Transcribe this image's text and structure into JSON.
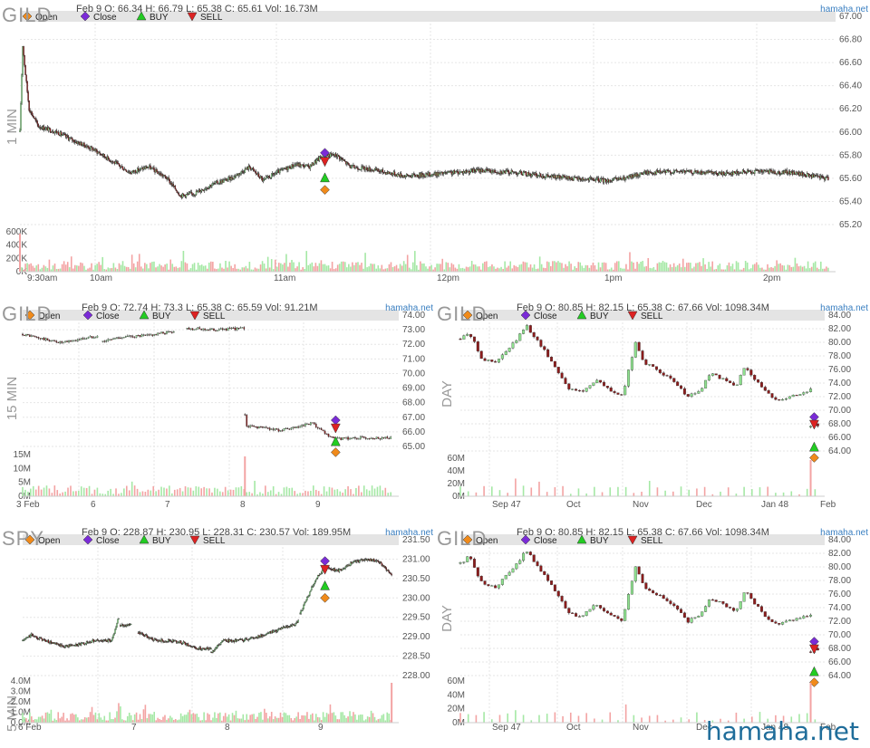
{
  "watermark": "hamaha.net",
  "colors": {
    "up": "#8ee08e",
    "down": "#ee7777",
    "upBody": "#8ee08e",
    "downBody": "#8b1c1c",
    "open": "#f08a1a",
    "close": "#7a2bd6",
    "buy": "#22cc22",
    "sell": "#dd2222",
    "volUp": "#a5e8a5",
    "volDown": "#f3a3a3"
  },
  "charts": [
    {
      "id": "gild-1min",
      "symbol": "GILD",
      "timeframe": "1 MIN",
      "brand": "hamaha.net",
      "header": {
        "date": "Feb 9",
        "O": "66.34",
        "H": "66.79",
        "L": "65.38",
        "C": "65.61",
        "vol": "16.73M"
      },
      "legend": [
        "Open",
        "Close",
        "BUY",
        "SELL"
      ],
      "price_ticks": [
        "67.00",
        "66.80",
        "66.60",
        "66.40",
        "66.20",
        "66.00",
        "65.80",
        "65.60",
        "65.40",
        "65.20"
      ],
      "volume_ticks": [
        "600K",
        "400K",
        "200K",
        "0K"
      ],
      "x_ticks": [
        "9:30am",
        "10am",
        "11am",
        "12pm",
        "1pm",
        "2pm"
      ]
    },
    {
      "id": "gild-15min",
      "symbol": "GILD",
      "timeframe": "15 MIN",
      "brand": "hamaha.net",
      "header": {
        "date": "Feb 9",
        "O": "72.74",
        "H": "73.3",
        "L": "65.38",
        "C": "65.59",
        "vol": "91.21M"
      },
      "legend": [
        "Open",
        "Close",
        "BUY",
        "SELL"
      ],
      "price_ticks": [
        "74.00",
        "73.00",
        "72.00",
        "71.00",
        "70.00",
        "69.00",
        "68.00",
        "67.00",
        "66.00",
        "65.00"
      ],
      "volume_ticks": [
        "15M",
        "10M",
        "5M",
        "0M"
      ],
      "x_ticks": [
        "3 Feb",
        "6",
        "7",
        "8",
        "9"
      ]
    },
    {
      "id": "gild-day-a",
      "symbol": "GILD",
      "timeframe": "DAY",
      "brand": "hamaha.net",
      "header": {
        "date": "Feb 9",
        "O": "80.85",
        "H": "82.15",
        "L": "65.38",
        "C": "67.66",
        "vol": "1098.34M"
      },
      "legend": [
        "Open",
        "Close",
        "BUY",
        "SELL"
      ],
      "price_ticks": [
        "84.00",
        "82.00",
        "80.00",
        "78.00",
        "76.00",
        "74.00",
        "72.00",
        "70.00",
        "68.00",
        "66.00",
        "64.00"
      ],
      "volume_ticks": [
        "60M",
        "40M",
        "20M",
        "0M"
      ],
      "x_ticks": [
        "Sep 47",
        "Oct",
        "Nov",
        "Dec",
        "Jan 48",
        "Feb"
      ]
    },
    {
      "id": "spy-5min",
      "symbol": "SPY",
      "timeframe": "5 MIN",
      "brand": "hamaha.net",
      "header": {
        "date": "Feb 9",
        "O": "228.87",
        "H": "230.95",
        "L": "228.31",
        "C": "230.57",
        "vol": "189.95M"
      },
      "legend": [
        "Open",
        "Close",
        "BUY",
        "SELL"
      ],
      "price_ticks": [
        "231.50",
        "231.00",
        "230.50",
        "230.00",
        "229.50",
        "229.00",
        "228.50",
        "228.00"
      ],
      "volume_ticks": [
        "4.0M",
        "3.0M",
        "2.0M",
        "1.0M",
        "0.0M"
      ],
      "x_ticks": [
        "6 Feb",
        "7",
        "8",
        "9"
      ]
    },
    {
      "id": "gild-day-b",
      "symbol": "GILD",
      "timeframe": "DAY",
      "brand": "hamaha.net",
      "header": {
        "date": "Feb 9",
        "O": "80.85",
        "H": "82.15",
        "L": "65.38",
        "C": "67.66",
        "vol": "1098.34M"
      },
      "legend": [
        "Open",
        "Close",
        "BUY",
        "SELL"
      ],
      "price_ticks": [
        "84.00",
        "82.00",
        "80.00",
        "78.00",
        "76.00",
        "74.00",
        "72.00",
        "70.00",
        "68.00",
        "66.00",
        "64.00"
      ],
      "volume_ticks": [
        "60M",
        "40M",
        "20M",
        "0M"
      ],
      "x_ticks": [
        "Sep 47",
        "Oct",
        "Nov",
        "Dec",
        "Jan 48",
        "Feb"
      ]
    }
  ],
  "chart_data": [
    {
      "type": "candlestick",
      "title": "GILD 1 MIN",
      "ylim": [
        65.2,
        67.0
      ],
      "price_path": [
        {
          "x": "9:30am",
          "y": 66.0
        },
        {
          "x": "9:32",
          "y": 66.75
        },
        {
          "x": "9:36",
          "y": 66.3
        },
        {
          "x": "9:45",
          "y": 66.05
        },
        {
          "x": "10am",
          "y": 65.95
        },
        {
          "x": "10:10",
          "y": 65.7
        },
        {
          "x": "10:20",
          "y": 65.75
        },
        {
          "x": "10:35",
          "y": 65.45
        },
        {
          "x": "10:50",
          "y": 65.55
        },
        {
          "x": "11am",
          "y": 65.65
        },
        {
          "x": "11:10",
          "y": 65.55
        },
        {
          "x": "11:20",
          "y": 65.7
        },
        {
          "x": "11:30",
          "y": 65.8
        },
        {
          "x": "11:45",
          "y": 65.65
        },
        {
          "x": "12pm",
          "y": 65.62
        },
        {
          "x": "12:30",
          "y": 65.65
        },
        {
          "x": "1pm",
          "y": 65.58
        },
        {
          "x": "1:15",
          "y": 65.65
        },
        {
          "x": "1:45",
          "y": 65.63
        },
        {
          "x": "2pm",
          "y": 65.66
        },
        {
          "x": "2:30",
          "y": 65.6
        }
      ],
      "markers": {
        "Open": 65.5,
        "Close": 65.82,
        "BUY": 65.6,
        "SELL": 65.75
      },
      "volume_max": "600K"
    },
    {
      "type": "candlestick",
      "title": "GILD 15 MIN",
      "ylim": [
        65.0,
        74.0
      ],
      "price_path": [
        {
          "x": "3 Feb",
          "y": 72.7
        },
        {
          "x": "5 Feb",
          "y": 72.4
        },
        {
          "x": "6",
          "y": 72.1
        },
        {
          "x": "6.5",
          "y": 72.4
        },
        {
          "x": "7",
          "y": 72.8
        },
        {
          "x": "7.5",
          "y": 73.1
        },
        {
          "x": "8 open",
          "y": 67.0
        },
        {
          "x": "8",
          "y": 66.5
        },
        {
          "x": "8.5",
          "y": 66.2
        },
        {
          "x": "9",
          "y": 66.3
        },
        {
          "x": "9.3",
          "y": 65.7
        },
        {
          "x": "9.8",
          "y": 65.6
        }
      ],
      "markers": {
        "Open": 64.6,
        "Close": 66.8,
        "BUY": 65.3,
        "SELL": 66.3
      },
      "volume_max": "15M"
    },
    {
      "type": "candlestick",
      "title": "GILD DAY",
      "ylim": [
        64.0,
        84.0
      ],
      "price_path": [
        {
          "x": "Sep 47",
          "y": 81.0
        },
        {
          "x": "mid Sep",
          "y": 78.0
        },
        {
          "x": "late Sep",
          "y": 82.0
        },
        {
          "x": "Oct",
          "y": 80.0
        },
        {
          "x": "mid Oct",
          "y": 73.0
        },
        {
          "x": "Nov",
          "y": 72.0
        },
        {
          "x": "Nov",
          "y": 80.0
        },
        {
          "x": "mid Nov",
          "y": 76.0
        },
        {
          "x": "Dec",
          "y": 72.0
        },
        {
          "x": "mid Dec",
          "y": 75.0
        },
        {
          "x": "late Dec",
          "y": 72.0
        },
        {
          "x": "Jan 48",
          "y": 77.0
        },
        {
          "x": "mid Jan",
          "y": 72.0
        },
        {
          "x": "late Jan",
          "y": 72.5
        },
        {
          "x": "Feb",
          "y": 73.0
        },
        {
          "x": "Feb 9",
          "y": 67.66
        }
      ],
      "markers": {
        "Open": 63.0,
        "Close": 69.0,
        "BUY": 64.5,
        "SELL": 68.0
      },
      "volume_max": "60M"
    },
    {
      "type": "candlestick",
      "title": "SPY 5 MIN",
      "ylim": [
        228.0,
        231.5
      ],
      "price_path": [
        {
          "x": "6 Feb",
          "y": 229.0
        },
        {
          "x": "6.3",
          "y": 228.7
        },
        {
          "x": "6.8",
          "y": 228.9
        },
        {
          "x": "7",
          "y": 229.4
        },
        {
          "x": "7.2",
          "y": 229.0
        },
        {
          "x": "7.6",
          "y": 228.8
        },
        {
          "x": "8",
          "y": 228.6
        },
        {
          "x": "8.5",
          "y": 229.0
        },
        {
          "x": "8.9",
          "y": 229.2
        },
        {
          "x": "9",
          "y": 229.8
        },
        {
          "x": "9.3",
          "y": 230.6
        },
        {
          "x": "9.8",
          "y": 231.0
        },
        {
          "x": "end",
          "y": 230.6
        }
      ],
      "markers": {
        "Open": 230.0,
        "Close": 230.95,
        "BUY": 230.3,
        "SELL": 230.75
      },
      "volume_max": "4.0M"
    },
    {
      "type": "candlestick",
      "title": "GILD DAY",
      "ylim": [
        64.0,
        84.0
      ],
      "price_path": [
        {
          "x": "Sep 47",
          "y": 81.0
        },
        {
          "x": "mid Sep",
          "y": 78.0
        },
        {
          "x": "late Sep",
          "y": 82.0
        },
        {
          "x": "Oct",
          "y": 80.0
        },
        {
          "x": "mid Oct",
          "y": 73.0
        },
        {
          "x": "Nov",
          "y": 72.0
        },
        {
          "x": "Nov",
          "y": 80.0
        },
        {
          "x": "mid Nov",
          "y": 76.0
        },
        {
          "x": "Dec",
          "y": 72.0
        },
        {
          "x": "mid Dec",
          "y": 75.0
        },
        {
          "x": "late Dec",
          "y": 72.0
        },
        {
          "x": "Jan 48",
          "y": 77.0
        },
        {
          "x": "mid Jan",
          "y": 72.0
        },
        {
          "x": "late Jan",
          "y": 72.5
        },
        {
          "x": "Feb",
          "y": 73.0
        },
        {
          "x": "Feb 9",
          "y": 67.66
        }
      ],
      "markers": {
        "Open": 63.0,
        "Close": 69.0,
        "BUY": 64.5,
        "SELL": 68.0
      },
      "volume_max": "60M"
    }
  ]
}
